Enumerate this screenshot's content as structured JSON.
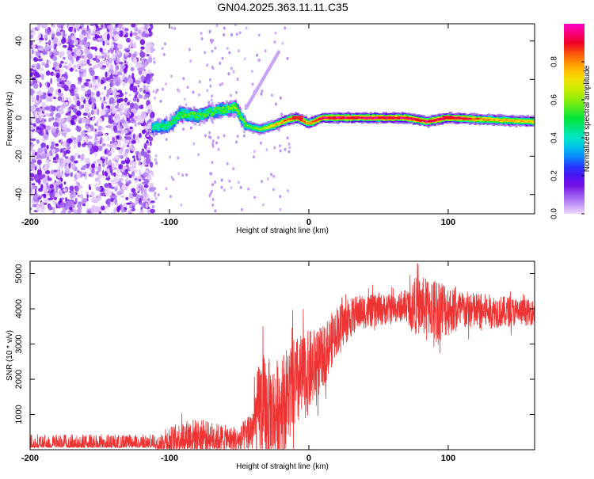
{
  "page": {
    "title": "GN04.2025.363.11.11.C35"
  },
  "chart_data": [
    {
      "id": "spectrogram",
      "type": "heatmap",
      "title": "GN04.2025.363.11.11.C35",
      "xlabel": "Height of straight line (km)",
      "ylabel": "Frequency (Hz)",
      "xlim": [
        -200,
        162
      ],
      "ylim": [
        -50,
        49
      ],
      "xticks": [
        -200,
        -100,
        0,
        100
      ],
      "yticks": [
        -40,
        -20,
        0,
        20,
        40
      ],
      "colorbar": {
        "label": "Normalized spectral amplitude",
        "range": [
          0,
          1
        ],
        "ticks": [
          0.0,
          0.2,
          0.4,
          0.6,
          0.8
        ],
        "colormap": "rainbow (violet-blue-cyan-green-yellow-red-magenta)"
      },
      "noise_region_km": [
        -200,
        -112
      ],
      "noise_amplitude_range": [
        0.0,
        0.15
      ],
      "ridge": [
        {
          "x": -112,
          "f": -5,
          "amp": 0.35
        },
        {
          "x": -100,
          "f": -4,
          "amp": 0.4
        },
        {
          "x": -92,
          "f": 2,
          "amp": 0.45
        },
        {
          "x": -80,
          "f": 1,
          "amp": 0.45
        },
        {
          "x": -65,
          "f": 4,
          "amp": 0.45
        },
        {
          "x": -52,
          "f": 5,
          "amp": 0.5
        },
        {
          "x": -45,
          "f": -4,
          "amp": 0.45
        },
        {
          "x": -35,
          "f": -6,
          "amp": 0.5
        },
        {
          "x": -25,
          "f": -4,
          "amp": 0.65
        },
        {
          "x": -15,
          "f": -1,
          "amp": 0.75
        },
        {
          "x": -8,
          "f": 0,
          "amp": 0.85
        },
        {
          "x": 0,
          "f": -3,
          "amp": 0.7
        },
        {
          "x": 10,
          "f": 0,
          "amp": 0.85
        },
        {
          "x": 40,
          "f": 0,
          "amp": 0.88
        },
        {
          "x": 70,
          "f": 0,
          "amp": 0.9
        },
        {
          "x": 85,
          "f": -2,
          "amp": 0.85
        },
        {
          "x": 100,
          "f": 0,
          "amp": 0.92
        },
        {
          "x": 130,
          "f": -1,
          "amp": 0.7
        },
        {
          "x": 162,
          "f": -2,
          "amp": 0.65
        }
      ]
    },
    {
      "id": "snr",
      "type": "line",
      "xlabel": "Height of straight line (km)",
      "ylabel": "SNR (10 * v/v)",
      "xlim": [
        -200,
        162
      ],
      "ylim": [
        0,
        5350
      ],
      "xticks": [
        -200,
        -100,
        0,
        100
      ],
      "yticks": [
        1000,
        2000,
        3000,
        4000,
        5000
      ],
      "color": "#ee3333",
      "envelope": [
        {
          "x": -200,
          "base": 150,
          "noise": 150
        },
        {
          "x": -110,
          "base": 150,
          "noise": 150
        },
        {
          "x": -100,
          "base": 300,
          "noise": 350
        },
        {
          "x": -85,
          "base": 400,
          "noise": 500
        },
        {
          "x": -70,
          "base": 350,
          "noise": 450
        },
        {
          "x": -50,
          "base": 250,
          "noise": 350
        },
        {
          "x": -40,
          "base": 600,
          "noise": 700
        },
        {
          "x": -35,
          "base": 1200,
          "noise": 1600
        },
        {
          "x": -25,
          "base": 1000,
          "noise": 1500
        },
        {
          "x": -10,
          "base": 1800,
          "noise": 1400
        },
        {
          "x": 0,
          "base": 2200,
          "noise": 1200
        },
        {
          "x": 10,
          "base": 2600,
          "noise": 900
        },
        {
          "x": 20,
          "base": 3400,
          "noise": 700
        },
        {
          "x": 35,
          "base": 3900,
          "noise": 500
        },
        {
          "x": 70,
          "base": 4050,
          "noise": 400
        },
        {
          "x": 75,
          "base": 4100,
          "noise": 800
        },
        {
          "x": 95,
          "base": 4000,
          "noise": 900
        },
        {
          "x": 105,
          "base": 3950,
          "noise": 600
        },
        {
          "x": 162,
          "base": 3900,
          "noise": 350
        }
      ]
    }
  ]
}
